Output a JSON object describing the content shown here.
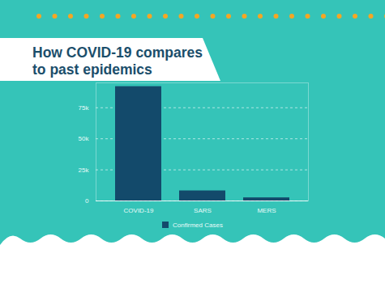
{
  "chart_data": {
    "type": "bar",
    "title": "How COVID-19 compares to past epidemics",
    "categories": [
      "COVID-19",
      "SARS",
      "MERS"
    ],
    "series": [
      {
        "name": "Confirmed Cases",
        "color": "#134a6b",
        "values": [
          92000,
          8100,
          2500
        ]
      }
    ],
    "ylim": [
      0,
      95000
    ],
    "yticks": [
      0,
      {
        "value": 25000,
        "label": "25k"
      },
      {
        "value": 50000,
        "label": "50k"
      },
      {
        "value": 75000,
        "label": "75k"
      }
    ],
    "grid": true,
    "legend": "bottom"
  }
}
